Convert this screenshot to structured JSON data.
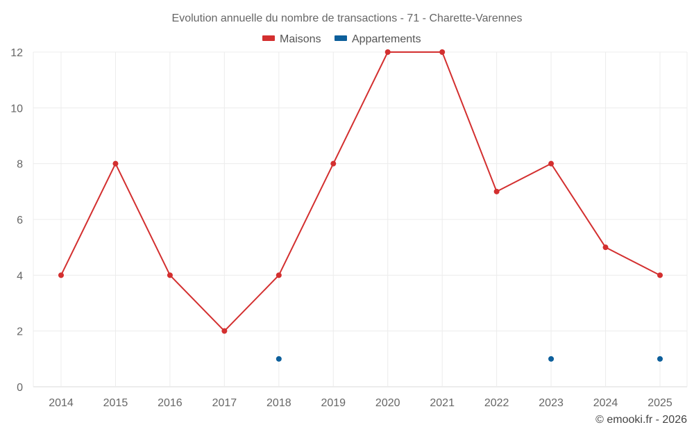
{
  "chart_data": {
    "type": "line",
    "title": "Evolution annuelle du nombre de transactions - 71 - Charette-Varennes",
    "categories": [
      "2014",
      "2015",
      "2016",
      "2017",
      "2018",
      "2019",
      "2020",
      "2021",
      "2022",
      "2023",
      "2024",
      "2025"
    ],
    "series": [
      {
        "name": "Maisons",
        "color": "#d32f2f",
        "values": [
          4,
          8,
          4,
          2,
          4,
          8,
          12,
          12,
          7,
          8,
          5,
          4
        ]
      },
      {
        "name": "Appartements",
        "color": "#0d5f9b",
        "values": [
          null,
          null,
          null,
          null,
          1,
          null,
          null,
          null,
          null,
          1,
          null,
          1
        ]
      }
    ],
    "ylim": [
      0,
      12
    ],
    "yticks": [
      0,
      2,
      4,
      6,
      8,
      10,
      12
    ],
    "xlabel": "",
    "ylabel": "",
    "grid": true,
    "legend_position": "top-center"
  },
  "credit": "© emooki.fr - 2026"
}
